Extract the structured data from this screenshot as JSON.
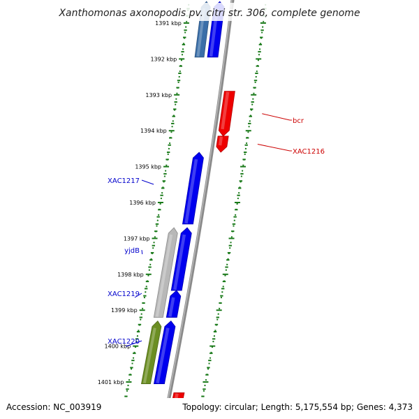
{
  "title": "Xanthomonas axonopodis pv. citri str. 306, complete genome",
  "footer": {
    "accession": "Accession: NC_003919",
    "topology": "Topology: circular; Length: 5,175,554 bp; Genes: 4,373"
  },
  "ruler": [
    {
      "label": "1391 kbp",
      "kbp": 1391
    },
    {
      "label": "1392 kbp",
      "kbp": 1392
    },
    {
      "label": "1393 kbp",
      "kbp": 1393
    },
    {
      "label": "1394 kbp",
      "kbp": 1394
    },
    {
      "label": "1395 kbp",
      "kbp": 1395
    },
    {
      "label": "1396 kbp",
      "kbp": 1396
    },
    {
      "label": "1397 kbp",
      "kbp": 1397
    },
    {
      "label": "1398 kbp",
      "kbp": 1398
    },
    {
      "label": "1399 kbp",
      "kbp": 1399
    },
    {
      "label": "1400 kbp",
      "kbp": 1400
    },
    {
      "label": "1401 kbp",
      "kbp": 1401
    }
  ],
  "genes": [
    {
      "id": "g1",
      "label": "",
      "track": "inner-plus",
      "start": 1390.4,
      "end": 1391.95,
      "dir": "forward",
      "color": "#0000ee"
    },
    {
      "id": "g2",
      "label": "",
      "track": "outer-plus",
      "start": 1390.4,
      "end": 1391.95,
      "dir": "forward",
      "color": "#3a6ea8"
    },
    {
      "id": "g3",
      "label": "bcr",
      "track": "minus",
      "start": 1392.9,
      "end": 1394.15,
      "dir": "reverse",
      "color": "#ee0000"
    },
    {
      "id": "g4",
      "label": "XAC1216",
      "track": "minus",
      "start": 1394.15,
      "end": 1394.6,
      "dir": "reverse",
      "color": "#ee0000"
    },
    {
      "id": "g5",
      "label": "XAC1217",
      "track": "inner-plus",
      "start": 1394.6,
      "end": 1396.6,
      "dir": "forward",
      "color": "#0000ee"
    },
    {
      "id": "g6",
      "label": "yjdB",
      "track": "outer-plus",
      "start": 1396.7,
      "end": 1399.2,
      "dir": "forward",
      "color": "#b8b8b8"
    },
    {
      "id": "g7",
      "label": "",
      "track": "inner-plus",
      "start": 1396.7,
      "end": 1398.45,
      "dir": "forward",
      "color": "#0000ee"
    },
    {
      "id": "g8",
      "label": "XAC1219",
      "track": "inner-plus",
      "start": 1398.45,
      "end": 1399.2,
      "dir": "forward",
      "color": "#0000ee"
    },
    {
      "id": "g9",
      "label": "XAC1220",
      "track": "inner-plus",
      "start": 1399.3,
      "end": 1401.05,
      "dir": "forward",
      "color": "#0000ee"
    },
    {
      "id": "g10",
      "label": "",
      "track": "outer-plus",
      "start": 1399.3,
      "end": 1401.05,
      "dir": "forward",
      "color": "#6b8e23"
    },
    {
      "id": "g11",
      "label": "",
      "track": "minus",
      "start": 1401.3,
      "end": 1402.0,
      "dir": "reverse",
      "color": "#ee0000"
    }
  ]
}
